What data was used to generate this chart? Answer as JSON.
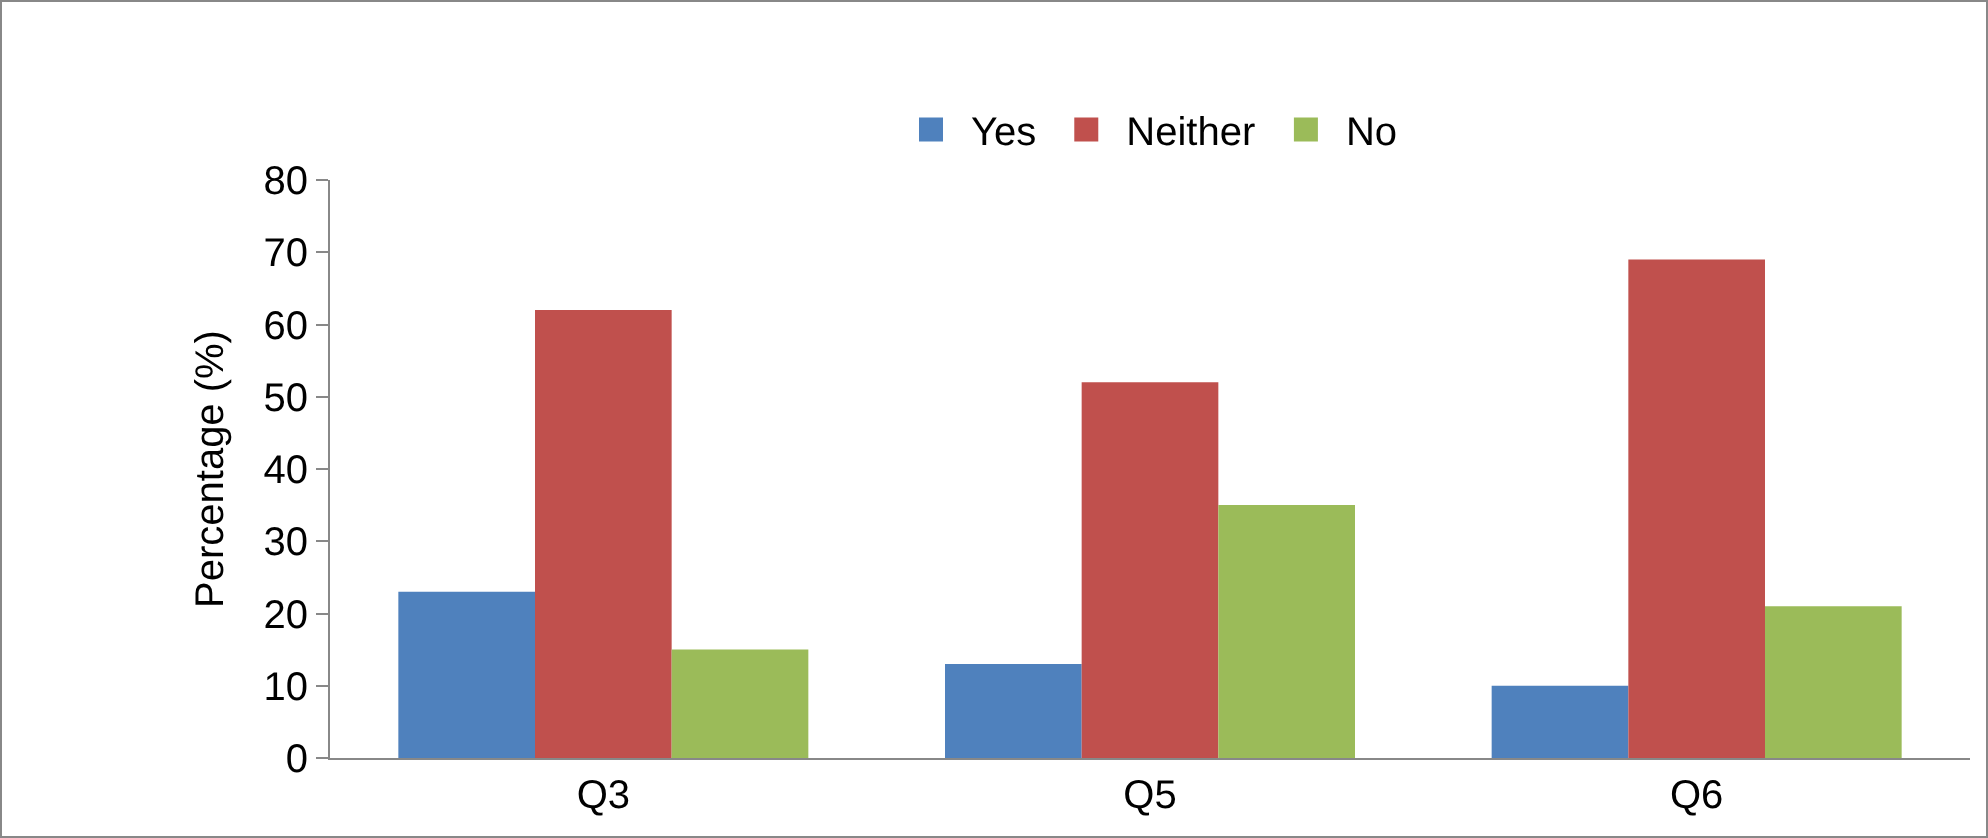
{
  "chart_data": {
    "type": "bar",
    "ylabel": "Percentage (%)",
    "categories": [
      "Q3",
      "Q5",
      "Q6"
    ],
    "series": [
      {
        "name": "Yes",
        "color": "#4f81bd",
        "values": [
          23,
          13,
          10
        ]
      },
      {
        "name": "Neither",
        "color": "#c0504d",
        "values": [
          62,
          52,
          69
        ]
      },
      {
        "name": "No",
        "color": "#9bbb59",
        "values": [
          15,
          35,
          21
        ]
      }
    ],
    "ylim": [
      0,
      80
    ],
    "yticks": [
      0,
      10,
      20,
      30,
      40,
      50,
      60,
      70,
      80
    ],
    "grid": false,
    "legend": "top"
  }
}
